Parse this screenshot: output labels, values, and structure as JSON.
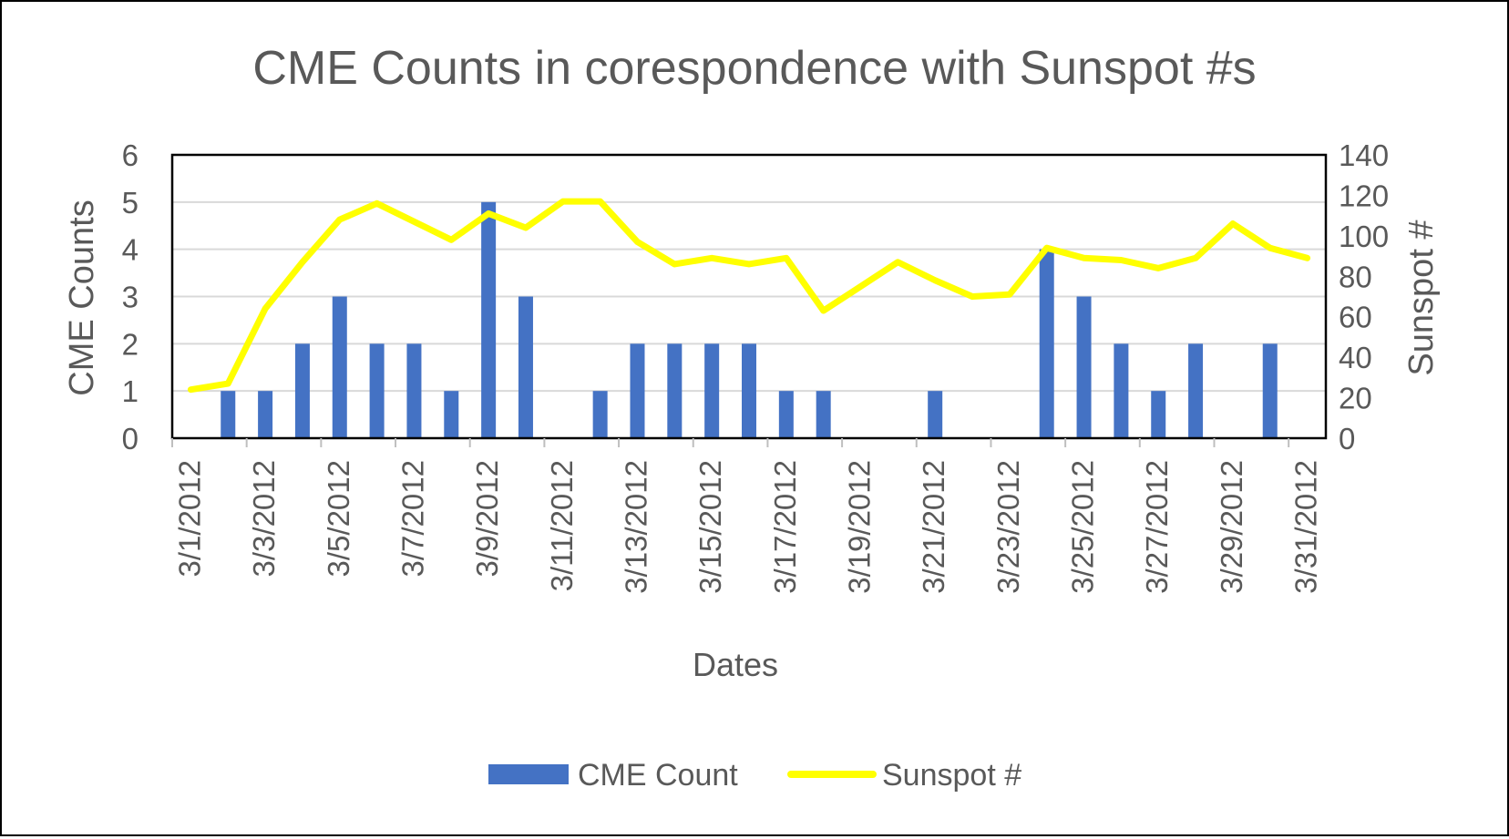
{
  "chart_data": {
    "type": "bar+line",
    "title": "CME Counts in corespondence with Sunspot #s",
    "xlabel": "Dates",
    "ylabel_left": "CME Counts",
    "ylabel_right": "Sunspot #",
    "ylim_left": [
      0,
      6
    ],
    "ylim_right": [
      0,
      140
    ],
    "yticks_left": [
      "0",
      "1",
      "2",
      "3",
      "4",
      "5",
      "6"
    ],
    "yticks_right": [
      "0",
      "20",
      "40",
      "60",
      "80",
      "100",
      "120",
      "140"
    ],
    "grid": true,
    "legend_position": "bottom",
    "categories": [
      "3/1/2012",
      "3/2/2012",
      "3/3/2012",
      "3/4/2012",
      "3/5/2012",
      "3/6/2012",
      "3/7/2012",
      "3/8/2012",
      "3/9/2012",
      "3/10/2012",
      "3/11/2012",
      "3/12/2012",
      "3/13/2012",
      "3/14/2012",
      "3/15/2012",
      "3/16/2012",
      "3/17/2012",
      "3/18/2012",
      "3/19/2012",
      "3/20/2012",
      "3/21/2012",
      "3/22/2012",
      "3/23/2012",
      "3/24/2012",
      "3/25/2012",
      "3/26/2012",
      "3/27/2012",
      "3/28/2012",
      "3/29/2012",
      "3/30/2012",
      "3/31/2012"
    ],
    "tick_labels_shown": [
      "3/1/2012",
      "3/3/2012",
      "3/5/2012",
      "3/7/2012",
      "3/9/2012",
      "3/11/2012",
      "3/13/2012",
      "3/15/2012",
      "3/17/2012",
      "3/19/2012",
      "3/21/2012",
      "3/23/2012",
      "3/25/2012",
      "3/27/2012",
      "3/29/2012",
      "3/31/2012"
    ],
    "series": [
      {
        "name": "CME Count",
        "type": "bar",
        "axis": "left",
        "color": "#4472C4",
        "values": [
          0,
          1,
          1,
          2,
          3,
          2,
          2,
          1,
          5,
          3,
          0,
          1,
          2,
          2,
          2,
          2,
          1,
          1,
          0,
          0,
          1,
          0,
          0,
          4,
          3,
          2,
          1,
          2,
          0,
          2,
          0
        ]
      },
      {
        "name": "Sunspot #",
        "type": "line",
        "axis": "right",
        "color": "#FFFF00",
        "values": [
          24,
          27,
          64,
          87,
          108,
          116,
          107,
          98,
          111,
          104,
          117,
          117,
          97,
          86,
          89,
          86,
          89,
          63,
          75,
          87,
          78,
          70,
          71,
          94,
          89,
          88,
          84,
          89,
          106,
          94,
          89
        ]
      }
    ]
  }
}
